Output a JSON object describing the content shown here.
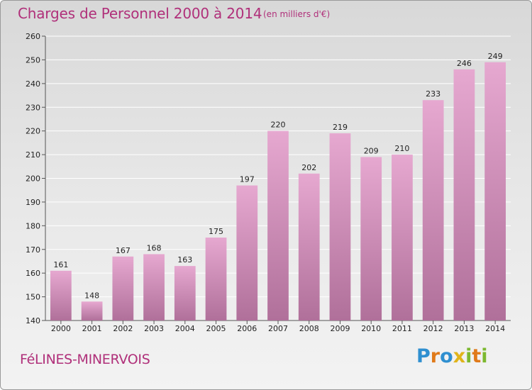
{
  "title": "Charges de Personnel 2000 à 2014",
  "unit_note": "(en milliers d'€)",
  "commune": "FéLINES-MINERVOIS",
  "logo": {
    "text": "Proxiti",
    "letters": [
      {
        "ch": "P",
        "color": "#2f8fd0"
      },
      {
        "ch": "r",
        "color": "#e07a1a"
      },
      {
        "ch": "o",
        "color": "#2f8fd0"
      },
      {
        "ch": "x",
        "color": "#e0b41a"
      },
      {
        "ch": "i",
        "color": "#7cb82f"
      },
      {
        "ch": "t",
        "color": "#e07a1a"
      },
      {
        "ch": "i",
        "color": "#7cb82f"
      }
    ]
  },
  "colors": {
    "bar_top": "#e6a8d0",
    "bar_bottom": "#b0709a",
    "title": "#b0307a",
    "grid": "#ffffff",
    "axis_text": "#222222"
  },
  "chart_data": {
    "type": "bar",
    "title": "Charges de Personnel 2000 à 2014",
    "subtitle": "(en milliers d'€)",
    "categories": [
      "2000",
      "2001",
      "2002",
      "2003",
      "2004",
      "2005",
      "2006",
      "2007",
      "2008",
      "2009",
      "2010",
      "2011",
      "2012",
      "2013",
      "2014"
    ],
    "values": [
      161,
      148,
      167,
      168,
      163,
      175,
      197,
      220,
      202,
      219,
      209,
      210,
      233,
      246,
      249
    ],
    "ylim": [
      140,
      260
    ],
    "yticks": [
      140,
      150,
      160,
      170,
      180,
      190,
      200,
      210,
      220,
      230,
      240,
      250,
      260
    ],
    "grid": true,
    "data_labels": true
  }
}
